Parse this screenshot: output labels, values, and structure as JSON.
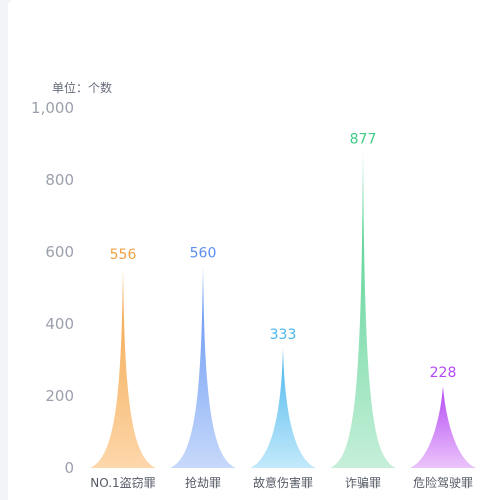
{
  "chart_data": {
    "type": "bar",
    "unit_label": "单位：个数",
    "categories": [
      "NO.1盗窃罪",
      "抢劫罪",
      "故意伤害罪",
      "诈骗罪",
      "危险驾驶罪"
    ],
    "values": [
      556,
      560,
      333,
      877,
      228
    ],
    "value_labels": [
      "556",
      "560",
      "333",
      "877",
      "228"
    ],
    "yticks": [
      "0",
      "200",
      "400",
      "600",
      "800",
      "1,000"
    ],
    "ylim": [
      0,
      1000
    ],
    "bar_shape": "pictorial-spike",
    "colors": [
      {
        "top": "#f2a243",
        "bottom": "#fdd7ab",
        "label": "#f0a144"
      },
      {
        "top": "#5b8ef2",
        "bottom": "#c7d9fb",
        "label": "#5b8ef2"
      },
      {
        "top": "#49b6ec",
        "bottom": "#c3e9fb",
        "label": "#49b6ec"
      },
      {
        "top": "#3fcc85",
        "bottom": "#c6efd9",
        "label": "#3fcc85"
      },
      {
        "top": "#b448f3",
        "bottom": "#ebc4fb",
        "label": "#b448f3"
      }
    ]
  }
}
